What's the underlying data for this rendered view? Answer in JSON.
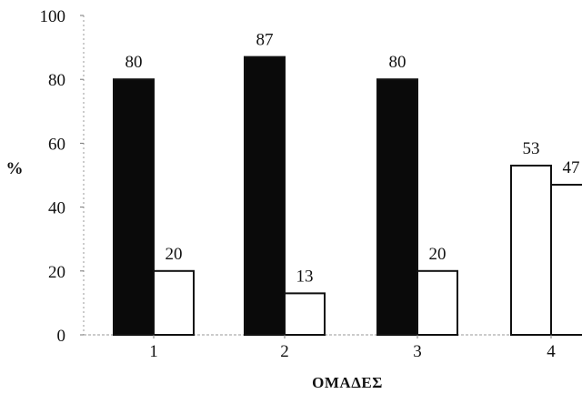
{
  "chart_data": {
    "type": "bar",
    "title": "",
    "xlabel": "ΟΜΑΔΕΣ",
    "ylabel": "%",
    "ylim": [
      0,
      100
    ],
    "yticks": [
      "0",
      "20",
      "40",
      "60",
      "80",
      "100"
    ],
    "categories": [
      "1",
      "2",
      "3",
      "4"
    ],
    "series": [
      {
        "values": [
          80,
          87,
          80,
          53
        ],
        "value_labels": [
          "80",
          "87",
          "80",
          "53"
        ],
        "fill_colors": [
          "#0a0a0a",
          "#0a0a0a",
          "#0a0a0a",
          "#ffffff"
        ]
      },
      {
        "values": [
          20,
          13,
          20,
          47
        ],
        "value_labels": [
          "20",
          "13",
          "20",
          "47"
        ],
        "fill_colors": [
          "#ffffff",
          "#ffffff",
          "#ffffff",
          "#ffffff"
        ]
      }
    ],
    "grid": false,
    "legend": "none"
  }
}
